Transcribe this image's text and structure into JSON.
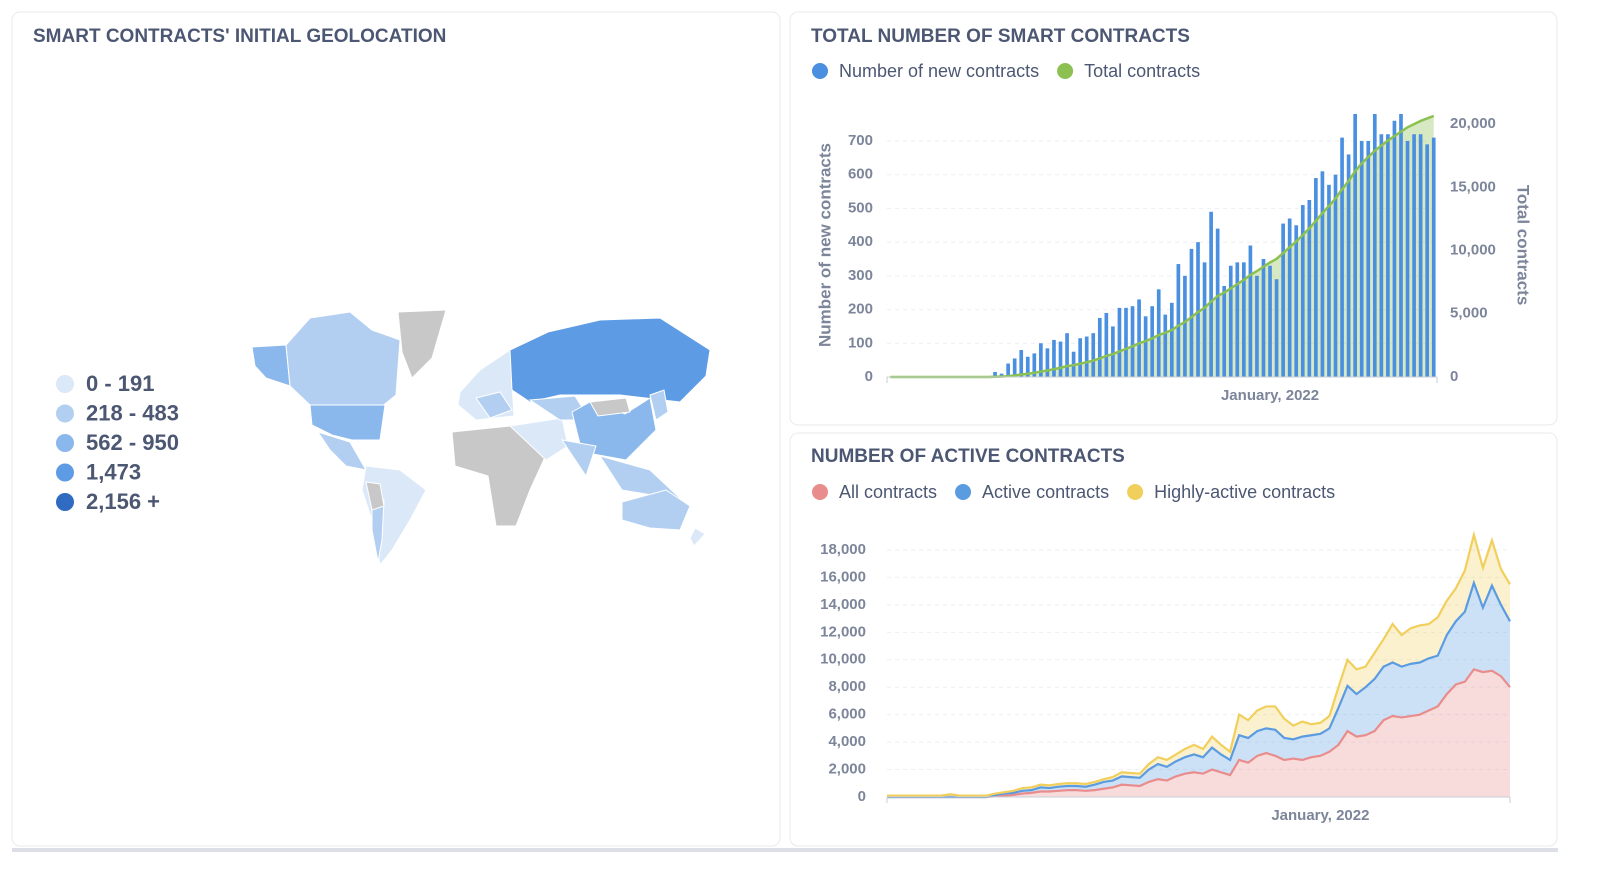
{
  "chart_data": [
    {
      "type": "map",
      "title": "SMART CONTRACTS' INITIAL GEOLOCATION",
      "legend": [
        {
          "label": "0 - 191",
          "color": "#dbe8f8"
        },
        {
          "label": "218 - 483",
          "color": "#b2cff2"
        },
        {
          "label": "562 - 950",
          "color": "#8ab7ec"
        },
        {
          "label": "1,473",
          "color": "#5d9be4"
        },
        {
          "label": "2,156 +",
          "color": "#2f6bc0"
        }
      ]
    },
    {
      "type": "combo",
      "title": "TOTAL NUMBER OF SMART CONTRACTS",
      "y_label": "Number of new contracts",
      "y2_label": "Total contracts",
      "categories": [
        null,
        null,
        null,
        null,
        null,
        null,
        null,
        null,
        null,
        null,
        null,
        null,
        null,
        null,
        null,
        null,
        null,
        null,
        null,
        null,
        null,
        null,
        null,
        null,
        null,
        null,
        null,
        null,
        null,
        null,
        null,
        null,
        null,
        null,
        null,
        null,
        null,
        null,
        null,
        null,
        null,
        null,
        null,
        null,
        null,
        null,
        null,
        null,
        null,
        null,
        null,
        null,
        null,
        null,
        null,
        null,
        null,
        null,
        "January, 2022",
        null,
        null,
        null,
        null,
        null,
        null,
        null,
        null,
        null,
        null,
        null,
        null,
        null,
        null,
        null,
        null,
        null,
        null,
        null,
        null,
        null,
        null,
        null,
        null,
        null
      ],
      "ylim": [
        0,
        780
      ],
      "yticks": [
        0,
        100,
        200,
        300,
        400,
        500,
        600,
        700
      ],
      "y2lim": [
        0,
        20800
      ],
      "y2ticks": [
        0,
        {
          "value": 5000,
          "label": "5,000"
        },
        {
          "value": 10000,
          "label": "10,000"
        },
        {
          "value": 15000,
          "label": "15,000"
        },
        {
          "value": 20000,
          "label": "20,000"
        }
      ],
      "grid": true,
      "series": [
        {
          "name": "Number of new contracts",
          "color": "#4a8fe0",
          "type": "bar",
          "values": [
            0,
            0,
            0,
            0,
            0,
            0,
            0,
            0,
            0,
            0,
            0,
            0,
            0,
            0,
            0,
            0,
            15,
            10,
            40,
            55,
            80,
            60,
            70,
            100,
            85,
            110,
            105,
            130,
            75,
            115,
            120,
            130,
            175,
            190,
            150,
            205,
            205,
            210,
            230,
            180,
            210,
            260,
            185,
            220,
            335,
            300,
            380,
            400,
            340,
            490,
            440,
            270,
            330,
            340,
            340,
            390,
            300,
            350,
            330,
            290,
            455,
            470,
            450,
            510,
            525,
            590,
            610,
            570,
            600,
            710,
            660,
            780,
            700,
            700,
            780,
            720,
            720,
            760,
            780,
            700,
            720,
            720,
            690,
            710
          ]
        },
        {
          "name": "Total contracts",
          "color": "#8cc152",
          "type": "line",
          "axis": "y2",
          "values": [
            0,
            0,
            0,
            0,
            0,
            0,
            0,
            0,
            0,
            0,
            0,
            0,
            0,
            0,
            0,
            0,
            15,
            25,
            65,
            120,
            200,
            260,
            330,
            430,
            515,
            625,
            730,
            860,
            935,
            1050,
            1170,
            1300,
            1475,
            1665,
            1815,
            2020,
            2225,
            2435,
            2665,
            2845,
            3055,
            3315,
            3500,
            3720,
            4055,
            4355,
            4735,
            5135,
            5475,
            5965,
            6405,
            6675,
            7005,
            7345,
            7685,
            8075,
            8375,
            8725,
            9055,
            9345,
            9800,
            10270,
            10720,
            11230,
            11755,
            12345,
            12955,
            13525,
            14125,
            14835,
            15495,
            16275,
            16900,
            17400,
            17900,
            18300,
            18700,
            19050,
            19400,
            19750,
            20000,
            20250,
            20450,
            20650
          ]
        }
      ]
    },
    {
      "type": "area",
      "title": "NUMBER OF ACTIVE CONTRACTS",
      "stacked": true,
      "categories": [
        null,
        null,
        null,
        null,
        null,
        null,
        null,
        null,
        null,
        null,
        null,
        null,
        null,
        null,
        null,
        null,
        null,
        null,
        null,
        null,
        null,
        null,
        null,
        null,
        null,
        null,
        null,
        null,
        null,
        null,
        null,
        null,
        null,
        null,
        null,
        null,
        null,
        null,
        null,
        null,
        null,
        null,
        null,
        null,
        null,
        null,
        null,
        null,
        "January, 2022",
        null,
        null,
        null,
        null,
        null,
        null,
        null,
        null,
        null,
        null,
        null,
        null,
        null,
        null,
        null,
        null,
        null,
        null,
        null,
        null,
        null
      ],
      "ylim": [
        0,
        19200
      ],
      "yticks": [
        0,
        {
          "value": 2000,
          "label": "2,000"
        },
        {
          "value": 4000,
          "label": "4,000"
        },
        {
          "value": 6000,
          "label": "6,000"
        },
        {
          "value": 8000,
          "label": "8,000"
        },
        {
          "value": 10000,
          "label": "10,000"
        },
        {
          "value": 12000,
          "label": "12,000"
        },
        {
          "value": 14000,
          "label": "14,000"
        },
        {
          "value": 16000,
          "label": "16,000"
        },
        {
          "value": 18000,
          "label": "18,000"
        }
      ],
      "grid": true,
      "series": [
        {
          "name": "All contracts",
          "color": "#e98c8c",
          "values": [
            0,
            0,
            0,
            0,
            0,
            0,
            0,
            0,
            0,
            0,
            0,
            0,
            50,
            100,
            150,
            250,
            300,
            400,
            400,
            450,
            500,
            500,
            450,
            500,
            600,
            700,
            900,
            850,
            800,
            1100,
            1300,
            1200,
            1500,
            1700,
            1800,
            1700,
            2000,
            1800,
            1600,
            2700,
            2500,
            3000,
            3200,
            3000,
            2700,
            2800,
            2700,
            2900,
            3000,
            3300,
            3800,
            4800,
            4400,
            4500,
            4800,
            5600,
            5900,
            5800,
            5900,
            6000,
            6300,
            6600,
            7500,
            8200,
            8400,
            9300,
            9100,
            9200,
            8800,
            8000
          ]
        },
        {
          "name": "Active contracts",
          "color": "#5b9be0",
          "values": [
            0,
            0,
            0,
            0,
            0,
            0,
            0,
            0,
            0,
            0,
            0,
            0,
            100,
            150,
            150,
            200,
            200,
            300,
            250,
            300,
            300,
            300,
            300,
            400,
            500,
            500,
            600,
            600,
            600,
            900,
            1100,
            1000,
            1100,
            1200,
            1300,
            1200,
            1600,
            1300,
            1100,
            1800,
            1800,
            1800,
            1800,
            1900,
            1600,
            1400,
            1700,
            1600,
            1600,
            1700,
            2700,
            3300,
            3100,
            3500,
            3800,
            3900,
            3900,
            3700,
            3800,
            3800,
            3800,
            3700,
            4300,
            4600,
            5100,
            6300,
            4700,
            6200,
            5200,
            4800
          ]
        },
        {
          "name": "Highly-active contracts",
          "color": "#f1cf5d",
          "values": [
            100,
            100,
            100,
            100,
            100,
            100,
            100,
            200,
            100,
            100,
            100,
            100,
            100,
            100,
            150,
            200,
            200,
            200,
            200,
            200,
            200,
            200,
            200,
            200,
            200,
            250,
            300,
            300,
            300,
            400,
            500,
            500,
            500,
            600,
            700,
            600,
            800,
            700,
            600,
            1500,
            1300,
            1500,
            1600,
            1700,
            1400,
            1000,
            1100,
            800,
            800,
            900,
            1500,
            1900,
            1800,
            1500,
            1900,
            2000,
            2800,
            2300,
            2600,
            2700,
            2500,
            2800,
            2500,
            2400,
            3000,
            3500,
            2900,
            3300,
            2600,
            2700
          ]
        }
      ]
    }
  ]
}
